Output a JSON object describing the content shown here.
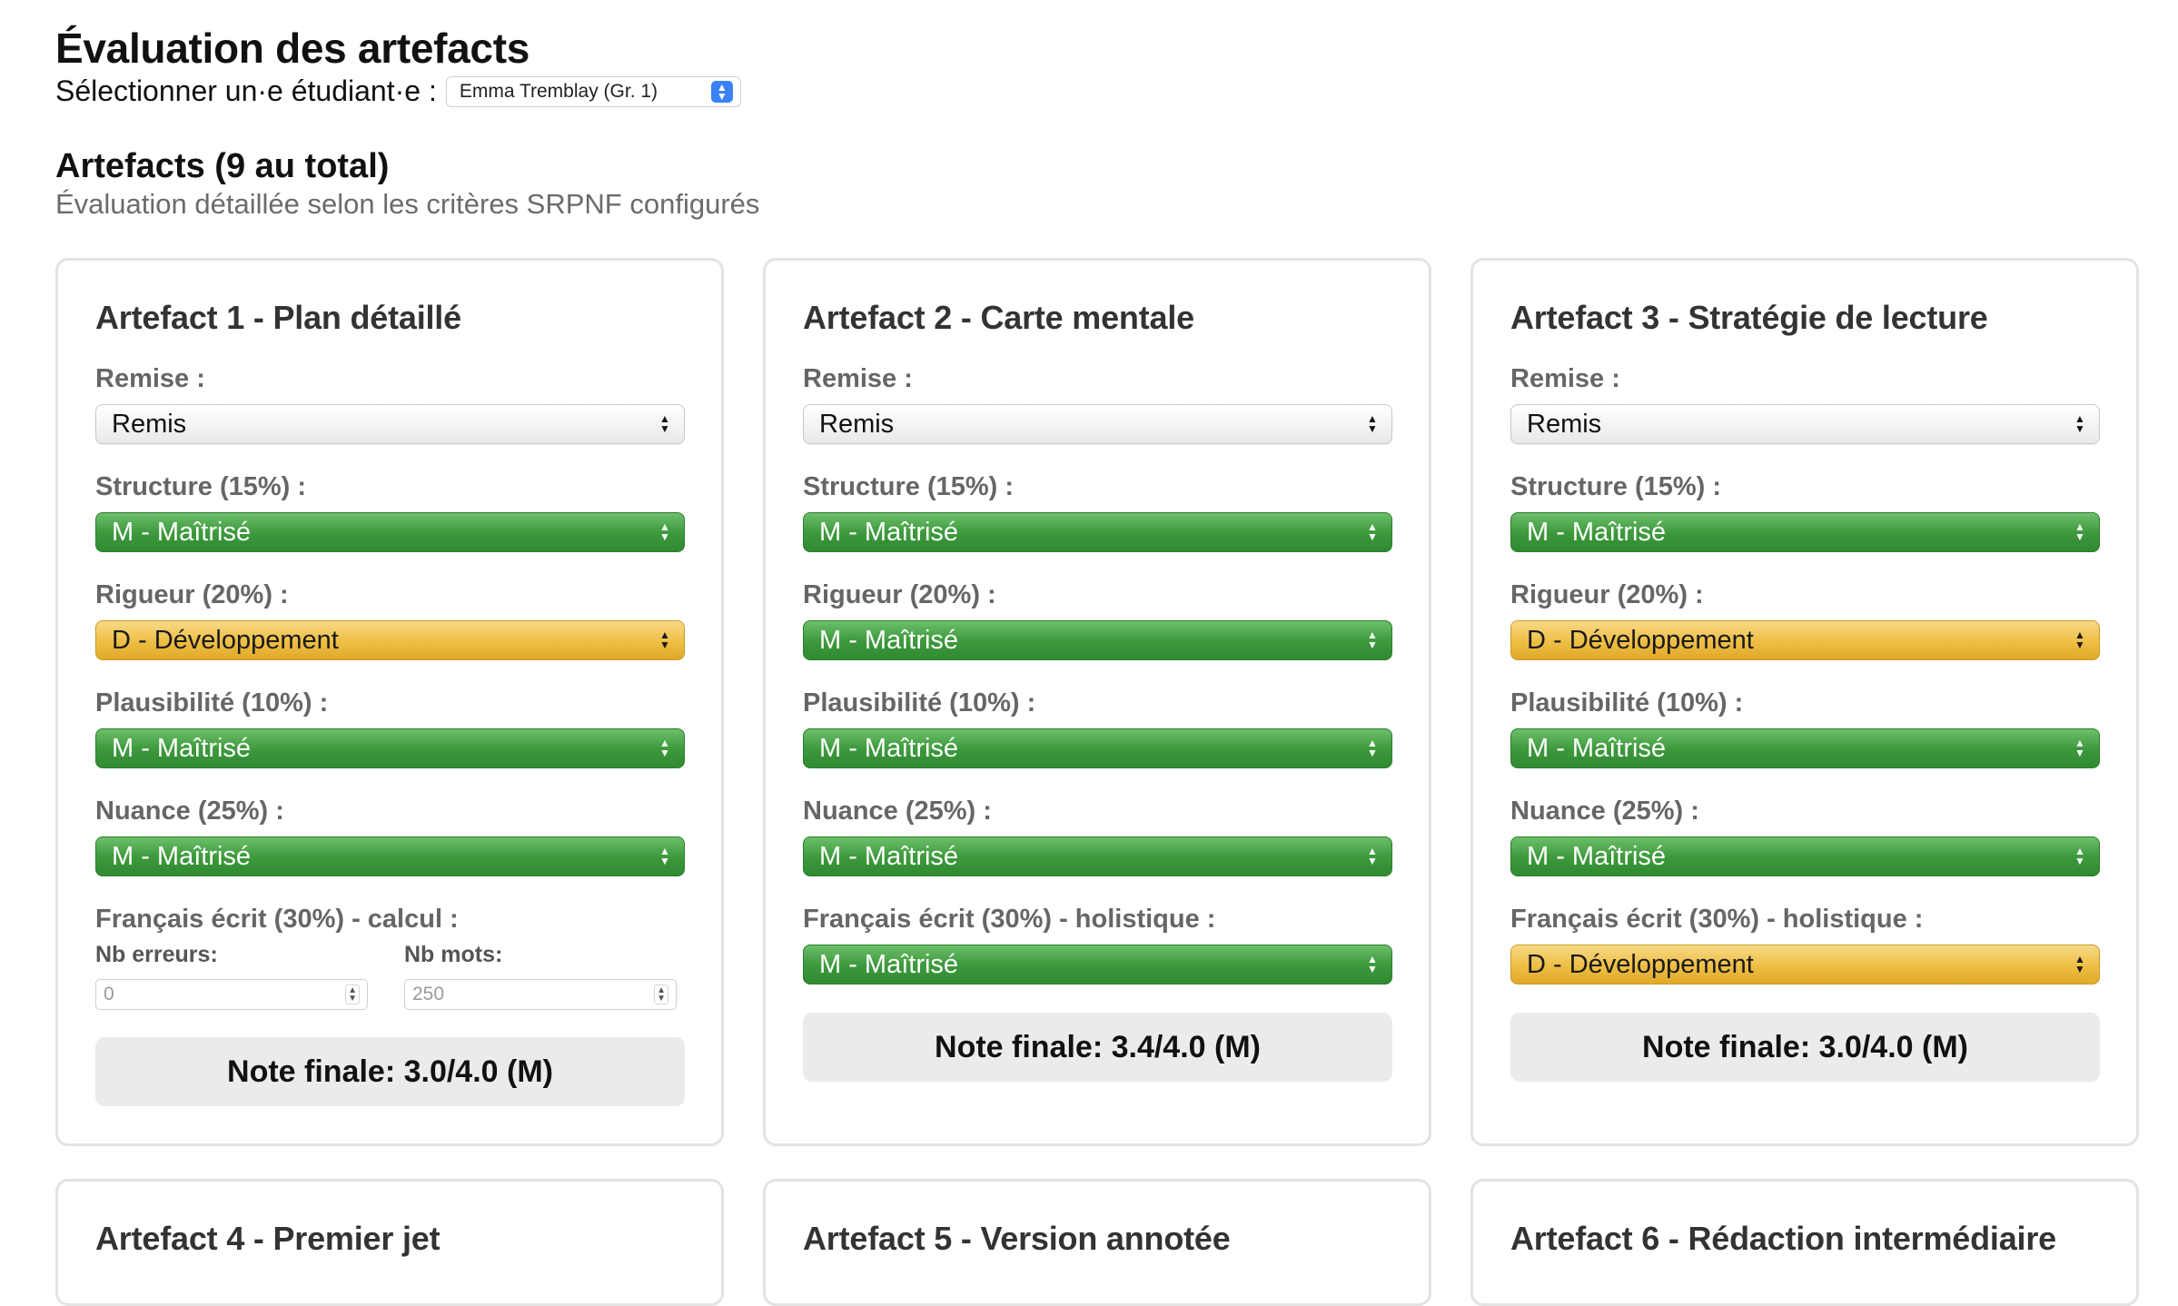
{
  "page": {
    "title": "Évaluation des artefacts",
    "student_label": "Sélectionner un·e étudiant·e :",
    "student_selected": "Emma Tremblay (Gr. 1)"
  },
  "section": {
    "title": "Artefacts (9 au total)",
    "subtitle": "Évaluation détaillée selon les critères SRPNF configurés"
  },
  "labels": {
    "remise": "Remise :",
    "structure": "Structure (15%) :",
    "rigueur": "Rigueur (20%) :",
    "plausibilite": "Plausibilité (10%) :",
    "nuance": "Nuance (25%) :",
    "francais_calcul": "Français écrit (30%) - calcul :",
    "francais_holistique": "Français écrit (30%) - holistique :",
    "nb_erreurs": "Nb erreurs:",
    "nb_mots": "Nb mots:"
  },
  "colors": {
    "maitrise": "#3f9a3e",
    "developpement": "#eebe44",
    "note_bg": "#ebebeb"
  },
  "artefacts": [
    {
      "title": "Artefact 1 - Plan détaillé",
      "remise": "Remis",
      "structure": "M - Maîtrisé",
      "rigueur": "D - Développement",
      "plausibilite": "M - Maîtrisé",
      "nuance": "M - Maîtrisé",
      "nb_erreurs_placeholder": "0",
      "nb_mots_placeholder": "250",
      "note": "Note finale: 3.0/4.0 (M)"
    },
    {
      "title": "Artefact 2 - Carte mentale",
      "remise": "Remis",
      "structure": "M - Maîtrisé",
      "rigueur": "M - Maîtrisé",
      "plausibilite": "M - Maîtrisé",
      "nuance": "M - Maîtrisé",
      "francais": "M - Maîtrisé",
      "note": "Note finale: 3.4/4.0 (M)"
    },
    {
      "title": "Artefact 3 - Stratégie de lecture",
      "remise": "Remis",
      "structure": "M - Maîtrisé",
      "rigueur": "D - Développement",
      "plausibilite": "M - Maîtrisé",
      "nuance": "M - Maîtrisé",
      "francais": "D - Développement",
      "note": "Note finale: 3.0/4.0 (M)"
    },
    {
      "title": "Artefact 4 - Premier jet"
    },
    {
      "title": "Artefact 5 - Version annotée"
    },
    {
      "title": "Artefact 6 - Rédaction intermédiaire"
    }
  ]
}
